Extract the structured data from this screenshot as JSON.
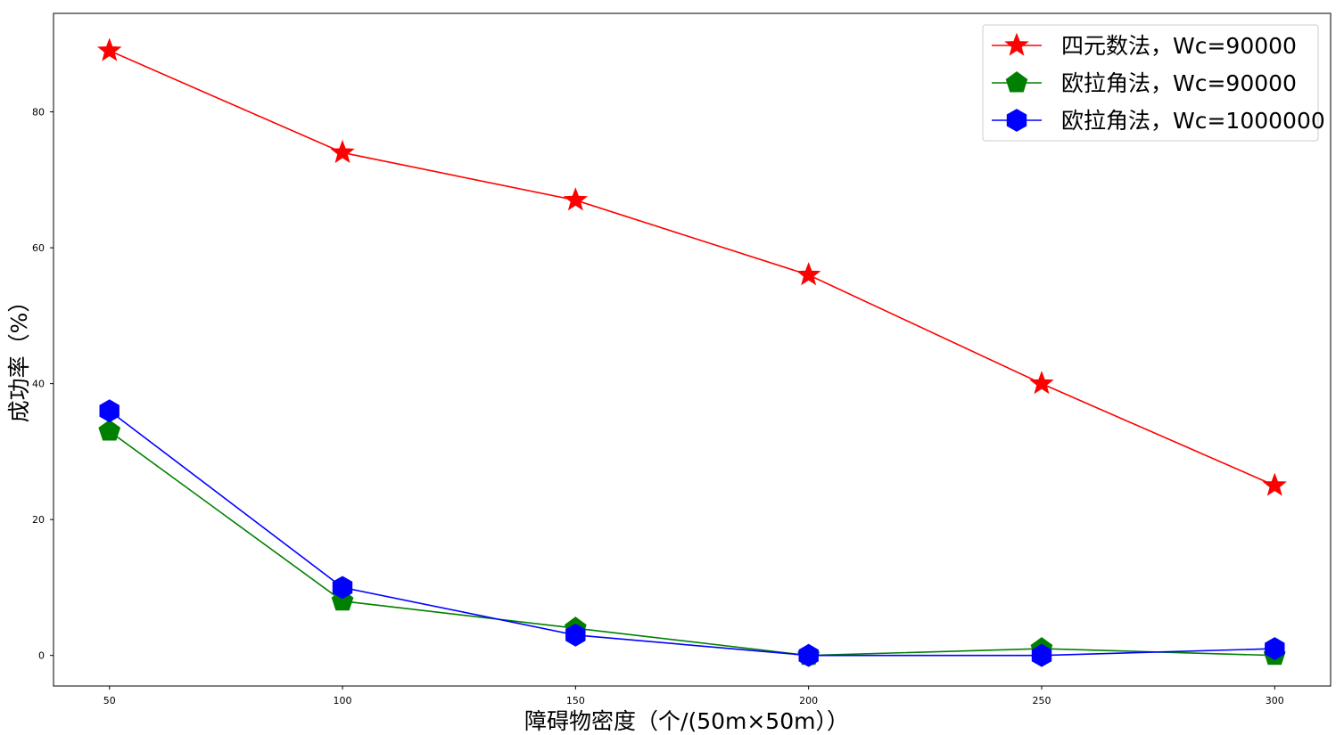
{
  "chart_data": {
    "type": "line",
    "title": "",
    "xlabel": "障碍物密度（个/(50m×50m））",
    "ylabel": "成功率（%）",
    "x": [
      50,
      100,
      150,
      200,
      250,
      300
    ],
    "xticks": [
      "50",
      "100",
      "150",
      "200",
      "250",
      "300"
    ],
    "yticks": [
      "0",
      "20",
      "40",
      "60",
      "80"
    ],
    "xlim": [
      38,
      312
    ],
    "ylim": [
      -4.5,
      94.5
    ],
    "grid": false,
    "legend_position": "top-right",
    "series": [
      {
        "name": "四元数法，Wc=90000",
        "values": [
          89,
          74,
          67,
          56,
          40,
          25
        ],
        "color": "#ff0000",
        "marker": "star"
      },
      {
        "name": "欧拉角法，Wc=90000",
        "values": [
          33,
          8,
          4,
          0,
          1,
          0
        ],
        "color": "#008000",
        "marker": "pentagon"
      },
      {
        "name": "欧拉角法，Wc=1000000",
        "values": [
          36,
          10,
          3,
          0,
          0,
          1
        ],
        "color": "#0000ff",
        "marker": "hexagon"
      }
    ]
  }
}
